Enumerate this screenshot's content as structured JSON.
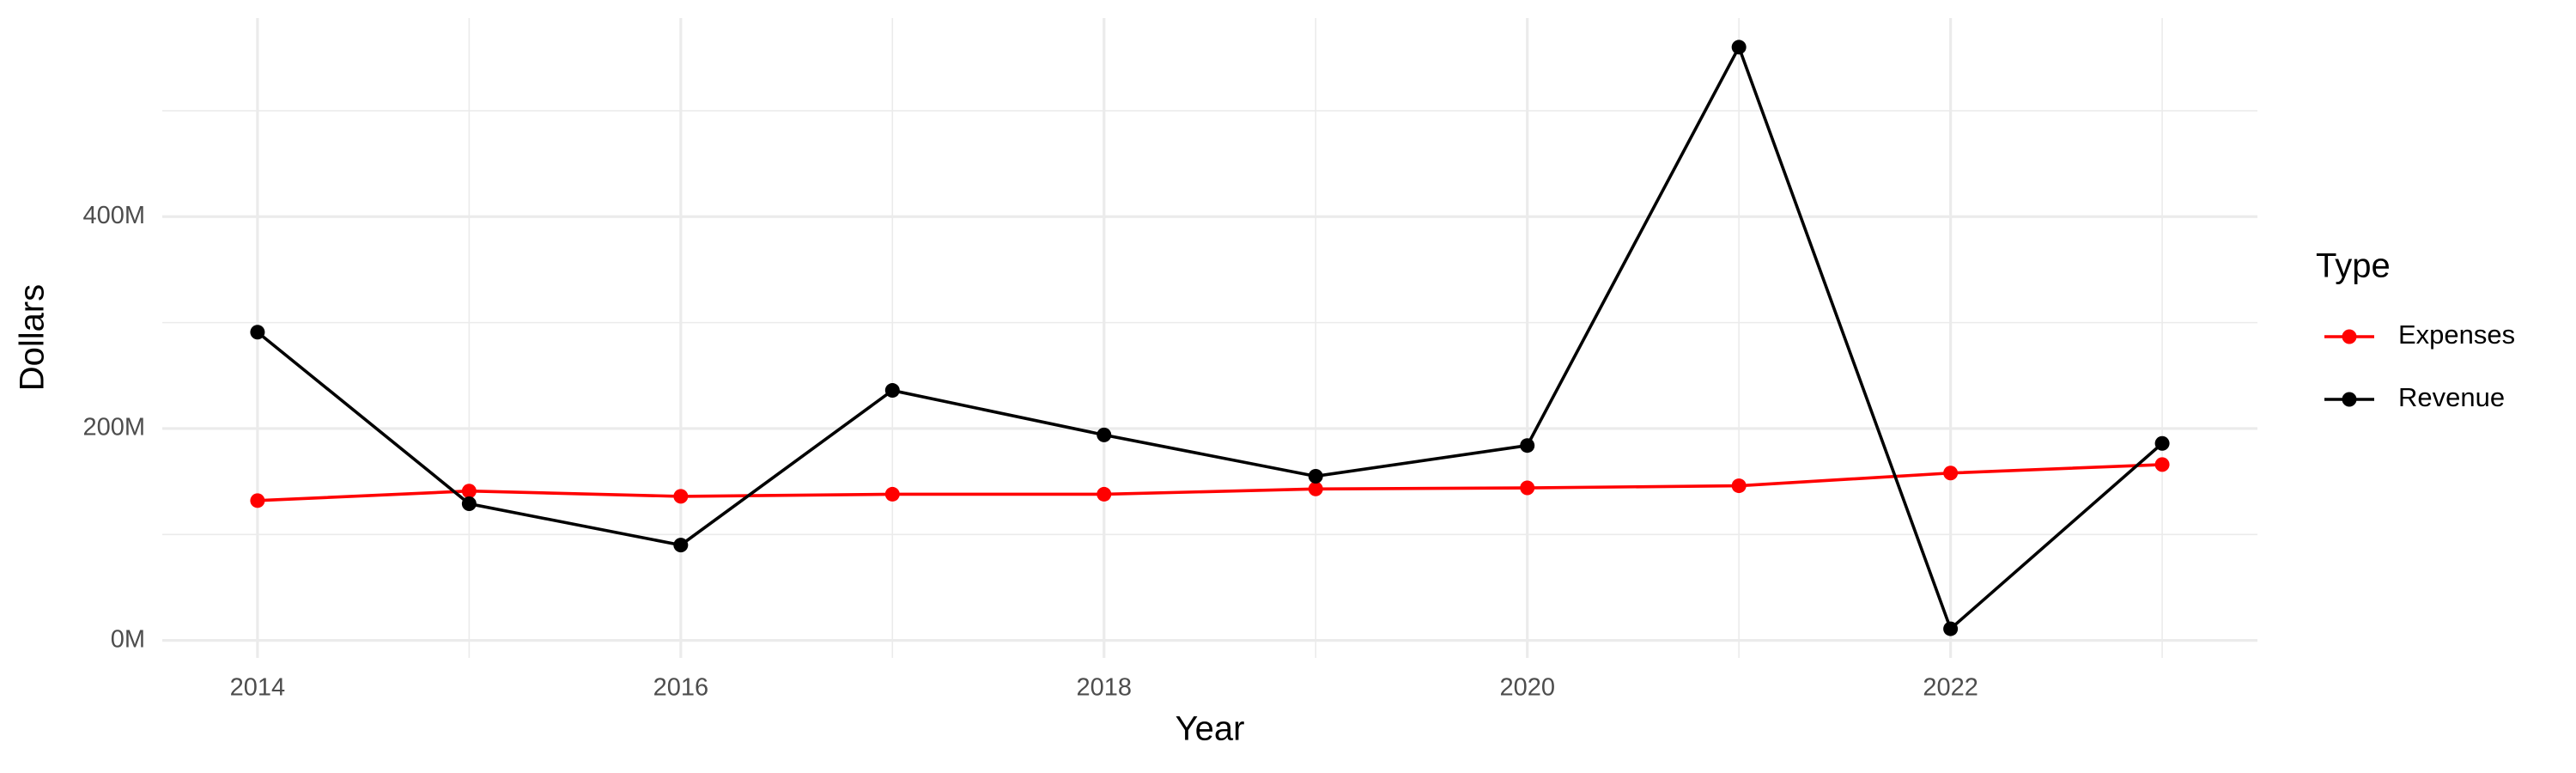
{
  "chart_data": {
    "type": "line",
    "x_label": "Year",
    "y_label": "Dollars",
    "legend_title": "Type",
    "legend_position": "right",
    "grid": true,
    "x": [
      2014,
      2015,
      2016,
      2017,
      2018,
      2019,
      2020,
      2021,
      2022,
      2023
    ],
    "series": [
      {
        "name": "Expenses",
        "color": "#ff0000",
        "values": [
          132000000,
          141000000,
          136000000,
          138000000,
          138000000,
          143000000,
          144000000,
          146000000,
          158000000,
          166000000
        ]
      },
      {
        "name": "Revenue",
        "color": "#000000",
        "values": [
          291000000,
          129000000,
          90000000,
          236000000,
          194000000,
          155000000,
          184000000,
          560000000,
          11000000,
          186000000
        ]
      }
    ],
    "xlim": [
      2013.55,
      2023.45
    ],
    "xticks": [
      2014,
      2016,
      2018,
      2020,
      2022
    ],
    "x_minor_ticks": [
      2015,
      2017,
      2019,
      2021,
      2023
    ],
    "ylim": [
      -16500000,
      587500000
    ],
    "yticks": [
      {
        "value": 0,
        "label": "0M"
      },
      {
        "value": 200000000,
        "label": "200M"
      },
      {
        "value": 400000000,
        "label": "400M"
      }
    ],
    "y_minor_ticks": [
      100000000,
      300000000,
      500000000
    ]
  }
}
